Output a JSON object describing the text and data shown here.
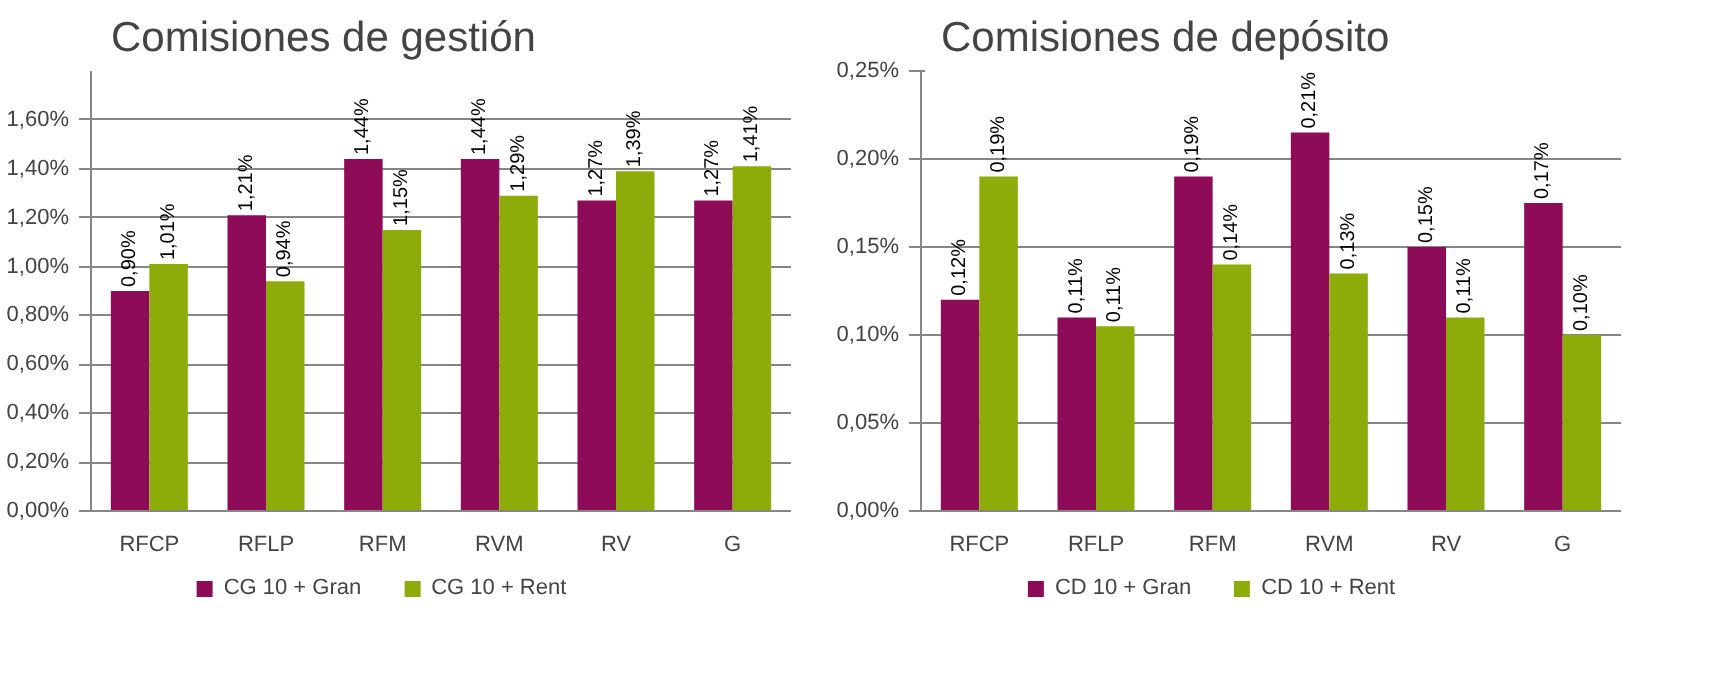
{
  "chart_data": [
    {
      "type": "bar",
      "title": "Comisiones de gestión",
      "categories": [
        "RFCP",
        "RFLP",
        "RFM",
        "RVM",
        "RV",
        "G"
      ],
      "series": [
        {
          "name": "CG 10 + Gran",
          "color": "#8e0c57",
          "values": [
            0.9,
            1.21,
            1.44,
            1.44,
            1.27,
            1.27
          ],
          "value_labels": [
            "0,90%",
            "1,21%",
            "1,44%",
            "1,44%",
            "1,27%",
            "1,27%"
          ]
        },
        {
          "name": "CG 10 + Rent",
          "color": "#8dac0a",
          "values": [
            1.01,
            0.94,
            1.15,
            1.29,
            1.39,
            1.41
          ],
          "value_labels": [
            "1,01%",
            "0,94%",
            "1,15%",
            "1,29%",
            "1,39%",
            "1,41%"
          ]
        }
      ],
      "ylim": [
        0,
        1.8
      ],
      "yticks": [
        {
          "value": 0,
          "label": "0,00%"
        },
        {
          "value": 0.2,
          "label": "0,20%"
        },
        {
          "value": 0.4,
          "label": "0,40%"
        },
        {
          "value": 0.6,
          "label": "0,60%"
        },
        {
          "value": 0.8,
          "label": "0,80%"
        },
        {
          "value": 1.0,
          "label": "1,00%"
        },
        {
          "value": 1.2,
          "label": "1,20%"
        },
        {
          "value": 1.4,
          "label": "1,40%"
        },
        {
          "value": 1.6,
          "label": "1,60%"
        }
      ],
      "grid": "y",
      "legend": "bottom"
    },
    {
      "type": "bar",
      "title": "Comisiones de depósito",
      "categories": [
        "RFCP",
        "RFLP",
        "RFM",
        "RVM",
        "RV",
        "G"
      ],
      "series": [
        {
          "name": "CD 10 + Gran",
          "color": "#8e0c57",
          "values": [
            0.12,
            0.11,
            0.19,
            0.215,
            0.15,
            0.175
          ],
          "value_labels": [
            "0,12%",
            "0,11%",
            "0,19%",
            "0,21%",
            "0,15%",
            "0,17%"
          ]
        },
        {
          "name": "CD 10 + Rent",
          "color": "#8dac0a",
          "values": [
            0.19,
            0.105,
            0.14,
            0.135,
            0.11,
            0.1
          ],
          "value_labels": [
            "0,19%",
            "0,11%",
            "0,14%",
            "0,13%",
            "0,11%",
            "0,10%"
          ]
        }
      ],
      "ylim": [
        0,
        0.25
      ],
      "yticks": [
        {
          "value": 0,
          "label": "0,00%"
        },
        {
          "value": 0.05,
          "label": "0,05%"
        },
        {
          "value": 0.1,
          "label": "0,10%"
        },
        {
          "value": 0.15,
          "label": "0,15%"
        },
        {
          "value": 0.2,
          "label": "0,20%"
        },
        {
          "value": 0.25,
          "label": "0,25%"
        }
      ],
      "grid": "y",
      "legend": "bottom"
    }
  ]
}
